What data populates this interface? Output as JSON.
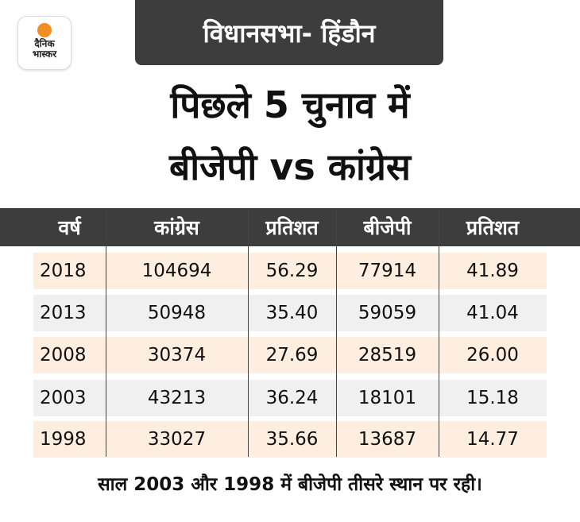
{
  "logo": {
    "line1": "दैनिक",
    "line2": "भास्कर",
    "accent": "#f58c1f"
  },
  "tag": "विधानसभा- हिंडौन",
  "title": {
    "line1": "पिछले 5 चुनाव में",
    "line2": "बीजेपी vs कांग्रेस"
  },
  "table": {
    "headers": [
      "वर्ष",
      "कांग्रेस",
      "प्रतिशत",
      "बीजेपी",
      "प्रतिशत"
    ],
    "rows": [
      [
        "2018",
        "104694",
        "56.29",
        "77914",
        "41.89"
      ],
      [
        "2013",
        "50948",
        "35.40",
        "59059",
        "41.04"
      ],
      [
        "2008",
        "30374",
        "27.69",
        "28519",
        "26.00"
      ],
      [
        "2003",
        "43213",
        "36.24",
        "18101",
        "15.18"
      ],
      [
        "1998",
        "33027",
        "35.66",
        "13687",
        "14.77"
      ]
    ]
  },
  "footer": "साल 2003 और 1998 में बीजेपी तीसरे स्थान पर रही।"
}
